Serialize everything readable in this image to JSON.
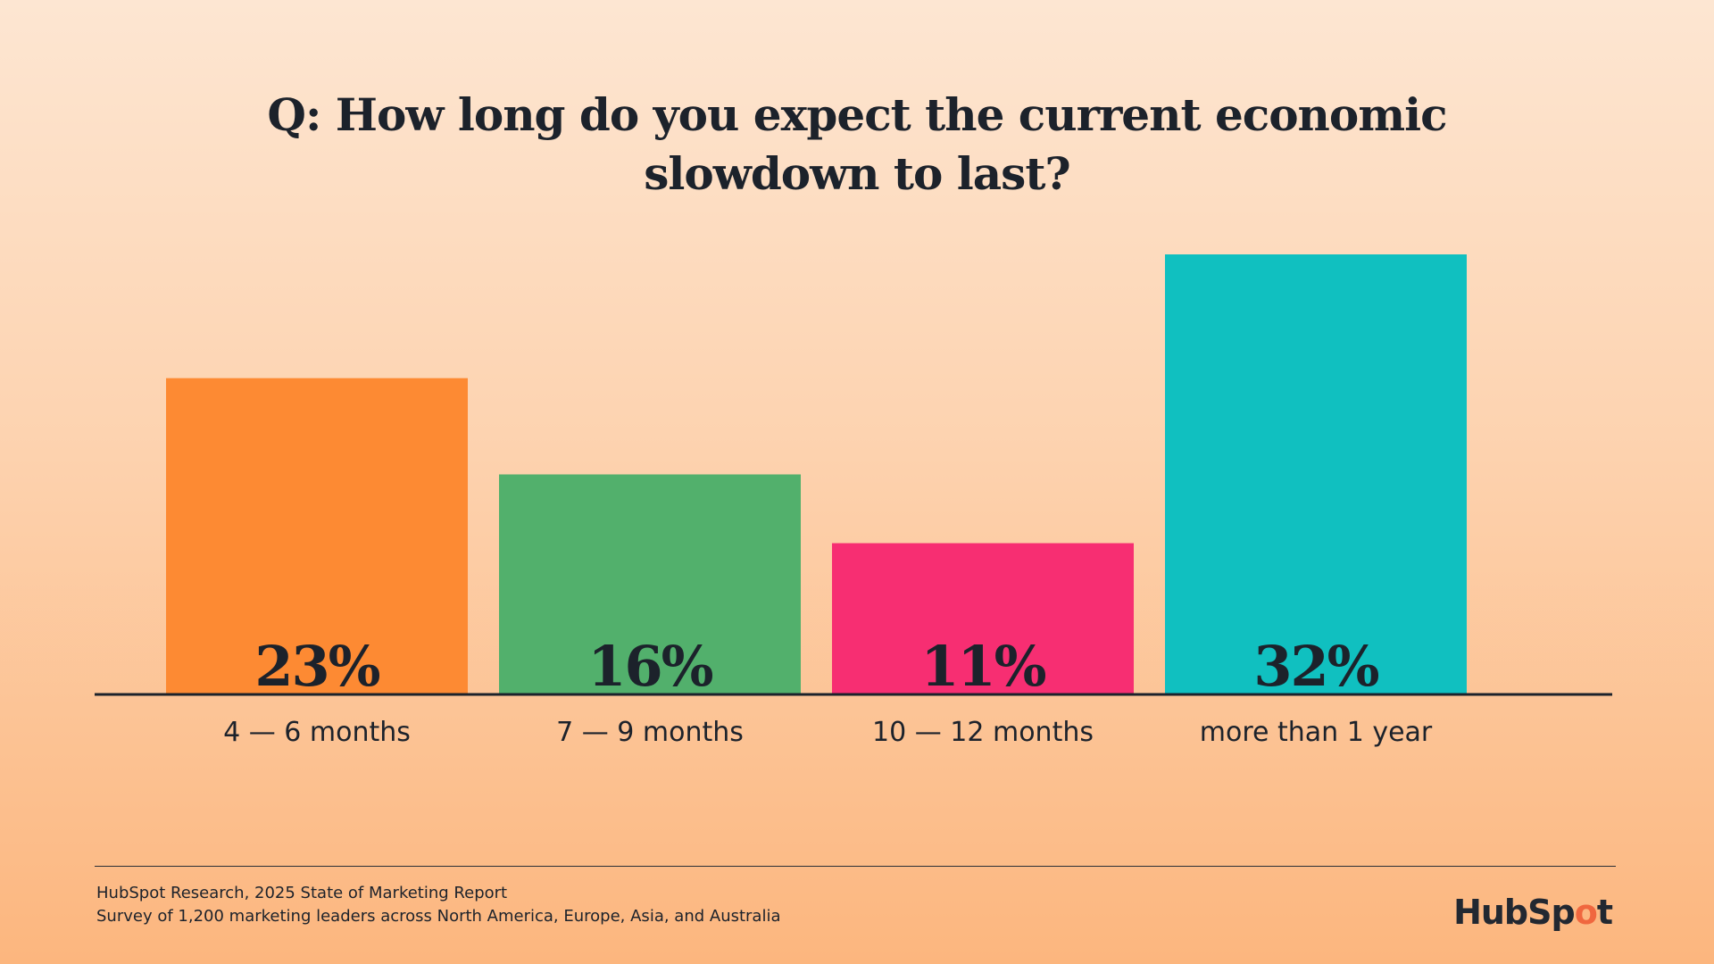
{
  "title": {
    "line1": "Q: How long do you expect the current economic",
    "line2": "slowdown to last?"
  },
  "chart_data": {
    "type": "bar",
    "categories": [
      "4 — 6 months",
      "7 — 9 months",
      "10 — 12 months",
      "more than 1 year"
    ],
    "values": [
      23,
      16,
      11,
      32
    ],
    "value_labels": [
      "23%",
      "16%",
      "11%",
      "32%"
    ],
    "colors": [
      "#fd8a33",
      "#52b06c",
      "#f72e72",
      "#10c0c0"
    ],
    "title": "Q: How long do you expect the current economic slowdown to last?",
    "xlabel": "",
    "ylabel": "",
    "ylim": [
      0,
      32
    ],
    "grid": false,
    "legend": "none"
  },
  "footer": {
    "source_line1": "HubSpot Research, 2025 State of Marketing Report",
    "source_line2": "Survey of 1,200 marketing leaders across North America, Europe, Asia, and Australia",
    "logo_prefix": "HubSp",
    "logo_o": "o",
    "logo_suffix": "t"
  }
}
